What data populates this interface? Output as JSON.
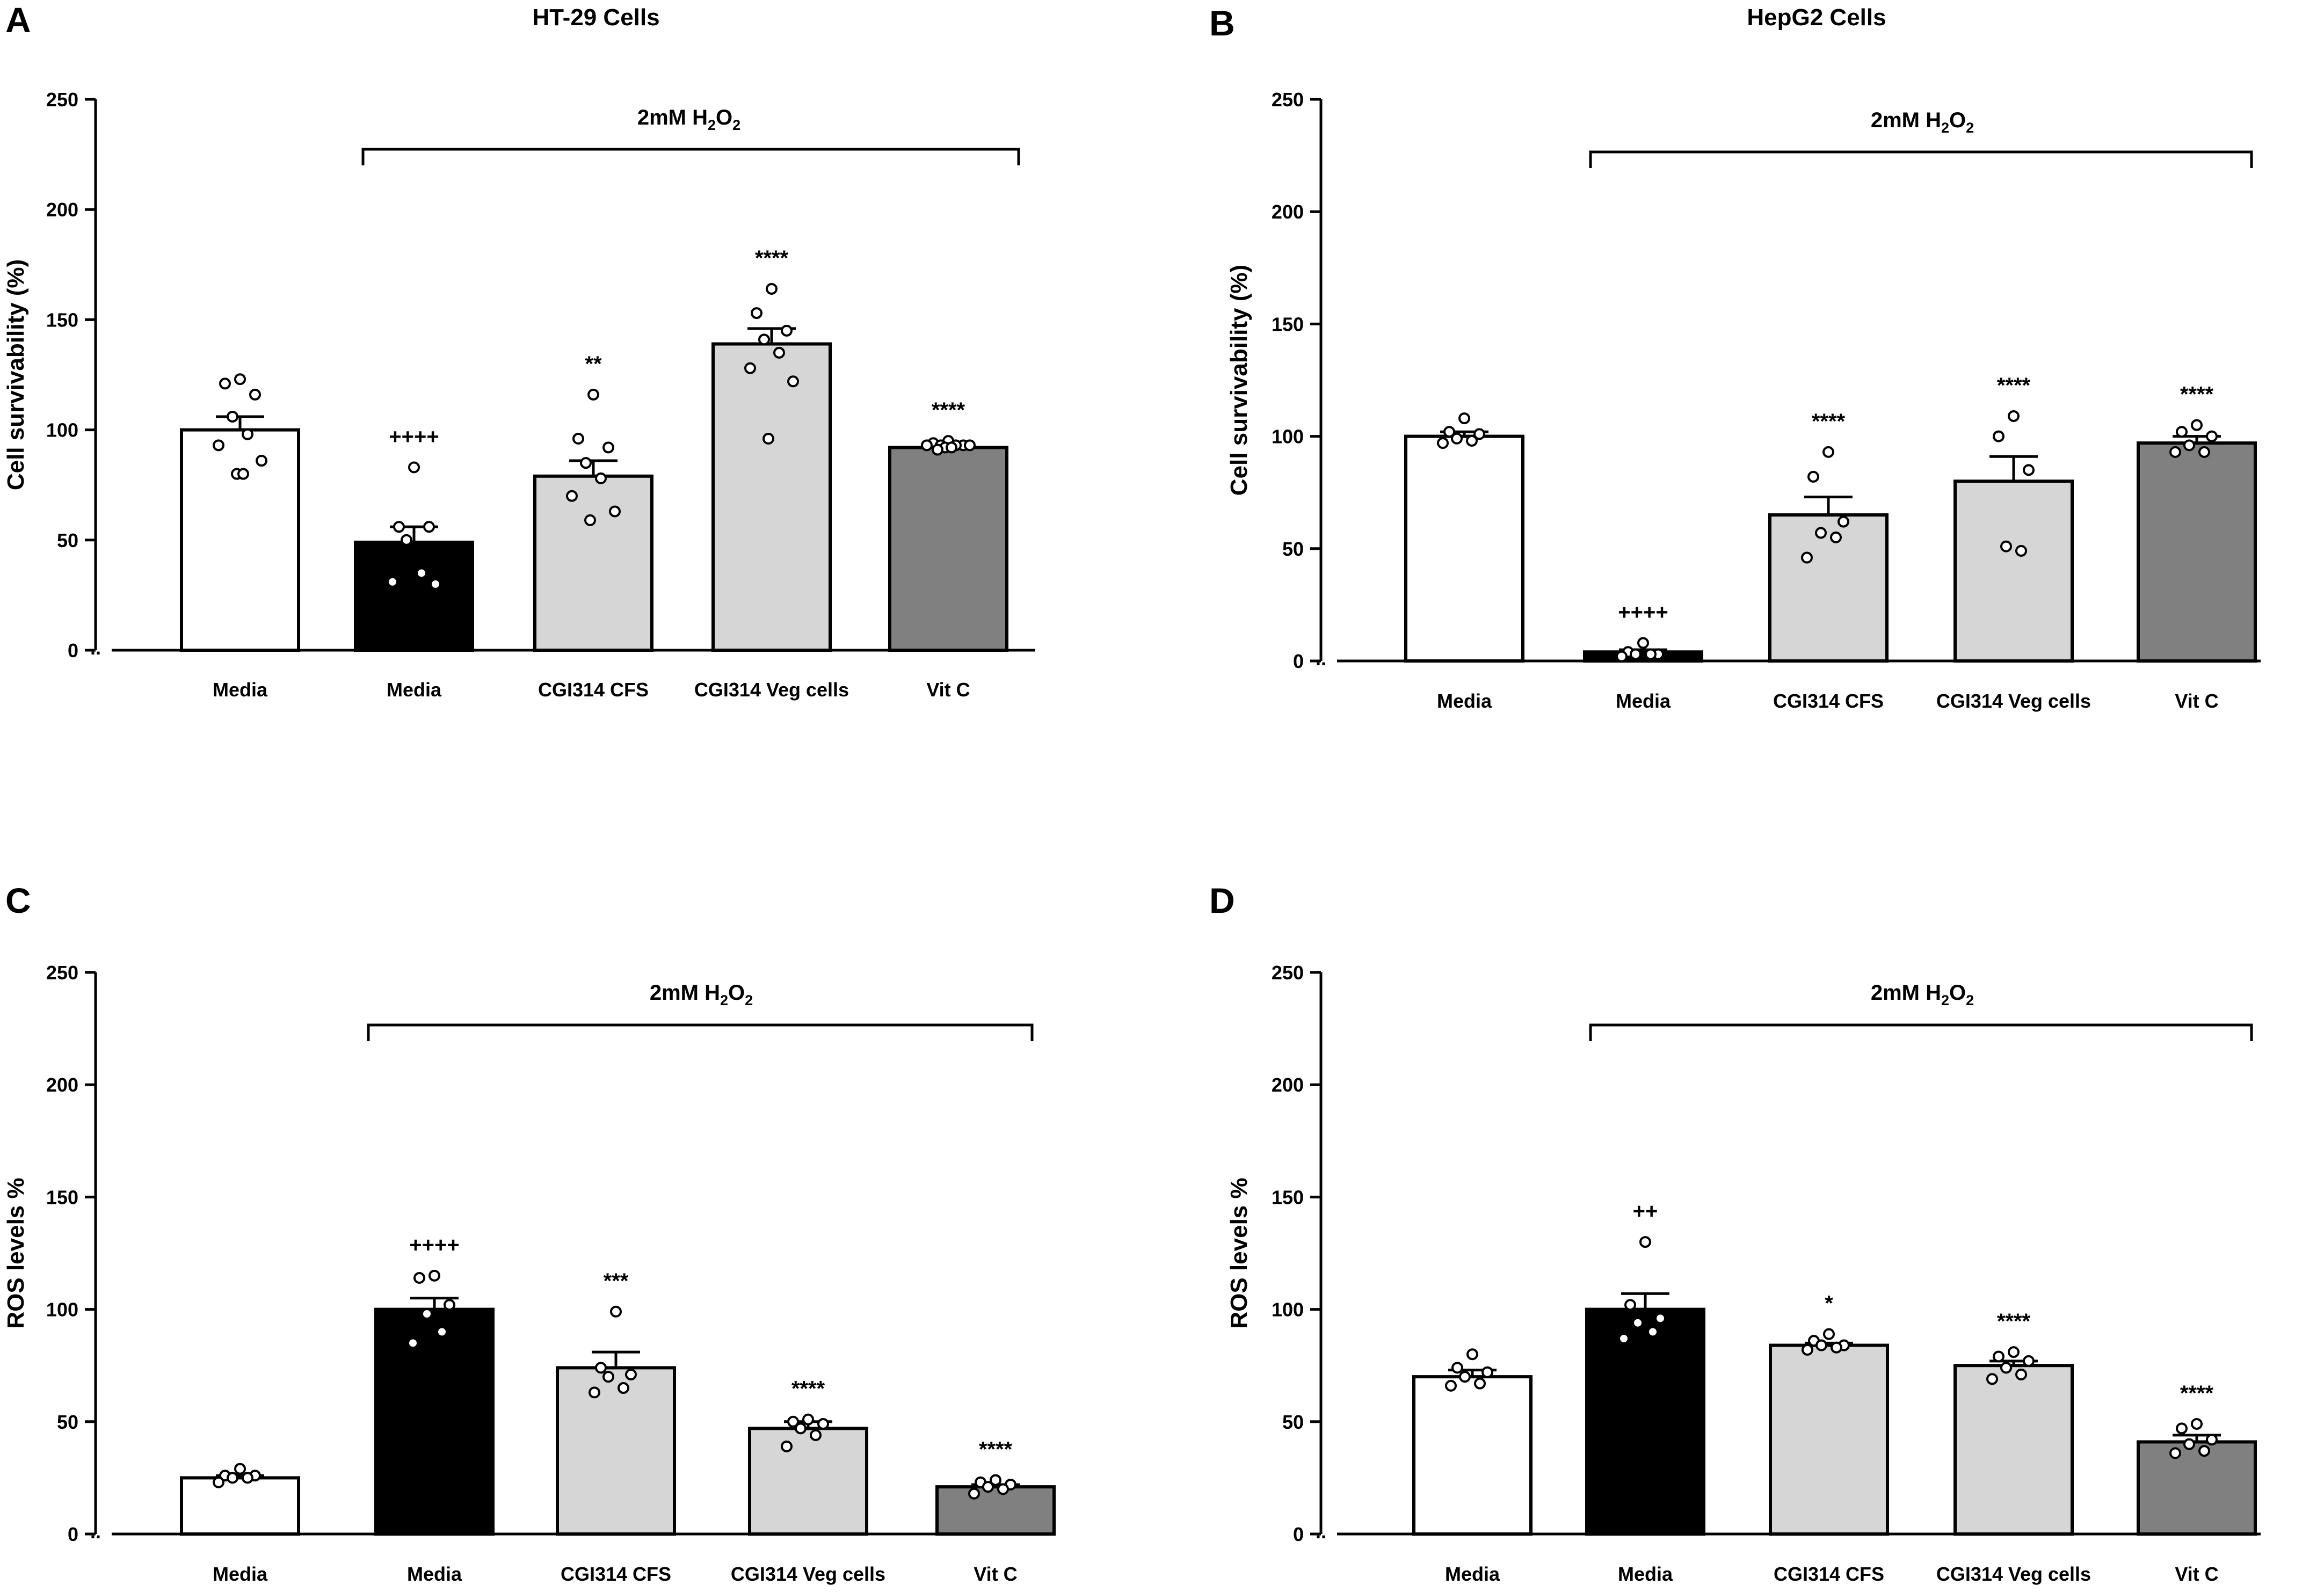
{
  "chart_data": [
    {
      "type": "bar",
      "panel": "A",
      "title": "HT-29 Cells",
      "ylabel": "Cell survivability (%)",
      "ylim": [
        0,
        250
      ],
      "yticks": [
        "0",
        "50",
        "100",
        "150",
        "200",
        "250"
      ],
      "categories": [
        "Media",
        "Media",
        "CGI314 CFS",
        "CGI314 Veg cells",
        "Vit C"
      ],
      "values": [
        100,
        49,
        79,
        139,
        92
      ],
      "sem": [
        6,
        7,
        7,
        7,
        1
      ],
      "colors": [
        "#ffffff",
        "#000000",
        "#d6d6d6",
        "#d6d6d6",
        "#808080"
      ],
      "points": [
        [
          123,
          121,
          116,
          106,
          98,
          93,
          86,
          80,
          80
        ],
        [
          83,
          56,
          56,
          50,
          35,
          31,
          30
        ],
        [
          116,
          96,
          92,
          85,
          78,
          70,
          63,
          59
        ],
        [
          164,
          153,
          145,
          141,
          135,
          128,
          122,
          96
        ],
        [
          95,
          94,
          93,
          93,
          93,
          93,
          93,
          92,
          92,
          91
        ]
      ],
      "significance": [
        "",
        "++++",
        "**",
        "****",
        "****"
      ],
      "bracket": {
        "label": "2mM H",
        "sub1": "2",
        "mid": "O",
        "sub2": "2"
      }
    },
    {
      "type": "bar",
      "panel": "B",
      "title": "HepG2 Cells",
      "ylabel": "Cell survivability (%)",
      "ylim": [
        0,
        250
      ],
      "yticks": [
        "0",
        "50",
        "100",
        "150",
        "200",
        "250"
      ],
      "categories": [
        "Media",
        "Media",
        "CGI314 CFS",
        "CGI314 Veg cells",
        "Vit C"
      ],
      "values": [
        100,
        4,
        65,
        80,
        97
      ],
      "sem": [
        2,
        1,
        8,
        11,
        3
      ],
      "colors": [
        "#ffffff",
        "#000000",
        "#d6d6d6",
        "#d6d6d6",
        "#808080"
      ],
      "points": [
        [
          108,
          102,
          101,
          99,
          98,
          97
        ],
        [
          8,
          4,
          3,
          3,
          3,
          2
        ],
        [
          93,
          82,
          62,
          57,
          55,
          46
        ],
        [
          109,
          100,
          85,
          51,
          49
        ],
        [
          105,
          102,
          100,
          96,
          93,
          93
        ]
      ],
      "significance": [
        "",
        "++++",
        "****",
        "****",
        "****"
      ],
      "bracket": {
        "label": "2mM H",
        "sub1": "2",
        "mid": "O",
        "sub2": "2"
      }
    },
    {
      "type": "bar",
      "panel": "C",
      "title": "",
      "ylabel": "ROS levels %",
      "ylim": [
        0,
        250
      ],
      "yticks": [
        "0",
        "50",
        "100",
        "150",
        "200",
        "250"
      ],
      "categories": [
        "Media",
        "Media",
        "CGI314 CFS",
        "CGI314 Veg cells",
        "Vit C"
      ],
      "values": [
        25,
        100,
        74,
        47,
        21
      ],
      "sem": [
        1,
        5,
        7,
        3,
        1
      ],
      "colors": [
        "#ffffff",
        "#000000",
        "#d6d6d6",
        "#d6d6d6",
        "#808080"
      ],
      "points": [
        [
          29,
          26,
          26,
          25,
          25,
          23
        ],
        [
          115,
          114,
          102,
          98,
          90,
          85
        ],
        [
          99,
          74,
          71,
          70,
          65,
          63
        ],
        [
          51,
          50,
          49,
          47,
          44,
          39
        ],
        [
          24,
          23,
          22,
          21,
          20,
          18
        ]
      ],
      "significance": [
        "",
        "++++",
        "***",
        "****",
        "****"
      ],
      "bracket": {
        "label": "2mM H",
        "sub1": "2",
        "mid": "O",
        "sub2": "2"
      }
    },
    {
      "type": "bar",
      "panel": "D",
      "title": "",
      "ylabel": "ROS levels %",
      "ylim": [
        0,
        250
      ],
      "yticks": [
        "0",
        "50",
        "100",
        "150",
        "200",
        "250"
      ],
      "categories": [
        "Media",
        "Media",
        "CGI314 CFS",
        "CGI314 Veg cells",
        "Vit C"
      ],
      "values": [
        70,
        100,
        84,
        75,
        41
      ],
      "sem": [
        3,
        7,
        1,
        2,
        3
      ],
      "colors": [
        "#ffffff",
        "#000000",
        "#d6d6d6",
        "#d6d6d6",
        "#808080"
      ],
      "points": [
        [
          80,
          74,
          72,
          70,
          67,
          66
        ],
        [
          130,
          102,
          96,
          94,
          90,
          87
        ],
        [
          89,
          86,
          84,
          84,
          83,
          82
        ],
        [
          81,
          79,
          77,
          74,
          71,
          69
        ],
        [
          49,
          47,
          42,
          40,
          37,
          36
        ]
      ],
      "significance": [
        "",
        "++",
        "*",
        "****",
        "****"
      ],
      "bracket": {
        "label": "2mM H",
        "sub1": "2",
        "mid": "O",
        "sub2": "2"
      }
    }
  ]
}
